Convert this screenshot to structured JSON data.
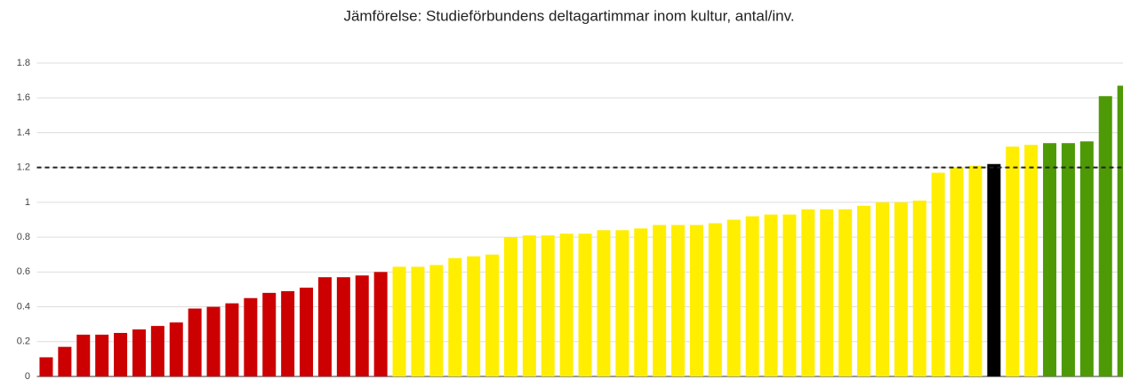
{
  "chart_data": {
    "type": "bar",
    "title": "Jämförelse: Studieförbundens deltagartimmar inom kultur, antal/inv.",
    "values": [
      0.11,
      0.17,
      0.24,
      0.24,
      0.25,
      0.27,
      0.29,
      0.31,
      0.39,
      0.4,
      0.42,
      0.45,
      0.48,
      0.49,
      0.51,
      0.57,
      0.57,
      0.58,
      0.6,
      0.63,
      0.63,
      0.64,
      0.68,
      0.69,
      0.7,
      0.8,
      0.81,
      0.81,
      0.82,
      0.82,
      0.84,
      0.84,
      0.85,
      0.87,
      0.87,
      0.87,
      0.88,
      0.9,
      0.92,
      0.93,
      0.93,
      0.96,
      0.96,
      0.96,
      0.98,
      1.0,
      1.0,
      1.01,
      1.17,
      1.2,
      1.21,
      1.22,
      1.32,
      1.33,
      1.34,
      1.34,
      1.35,
      1.61,
      1.67
    ],
    "colors": [
      "#cc0000",
      "#cc0000",
      "#cc0000",
      "#cc0000",
      "#cc0000",
      "#cc0000",
      "#cc0000",
      "#cc0000",
      "#cc0000",
      "#cc0000",
      "#cc0000",
      "#cc0000",
      "#cc0000",
      "#cc0000",
      "#cc0000",
      "#cc0000",
      "#cc0000",
      "#cc0000",
      "#cc0000",
      "#ffee00",
      "#ffee00",
      "#ffee00",
      "#ffee00",
      "#ffee00",
      "#ffee00",
      "#ffee00",
      "#ffee00",
      "#ffee00",
      "#ffee00",
      "#ffee00",
      "#ffee00",
      "#ffee00",
      "#ffee00",
      "#ffee00",
      "#ffee00",
      "#ffee00",
      "#ffee00",
      "#ffee00",
      "#ffee00",
      "#ffee00",
      "#ffee00",
      "#ffee00",
      "#ffee00",
      "#ffee00",
      "#ffee00",
      "#ffee00",
      "#ffee00",
      "#ffee00",
      "#ffee00",
      "#ffee00",
      "#ffee00",
      "#000000",
      "#ffee00",
      "#ffee00",
      "#4e9a06",
      "#4e9a06",
      "#4e9a06",
      "#4e9a06",
      "#4e9a06"
    ],
    "reference_line": 1.2,
    "ylim": [
      0,
      1.8
    ],
    "yticks": [
      0,
      0.2,
      0.4,
      0.6,
      0.8,
      1,
      1.2,
      1.4,
      1.6,
      1.8
    ],
    "grid": true
  }
}
